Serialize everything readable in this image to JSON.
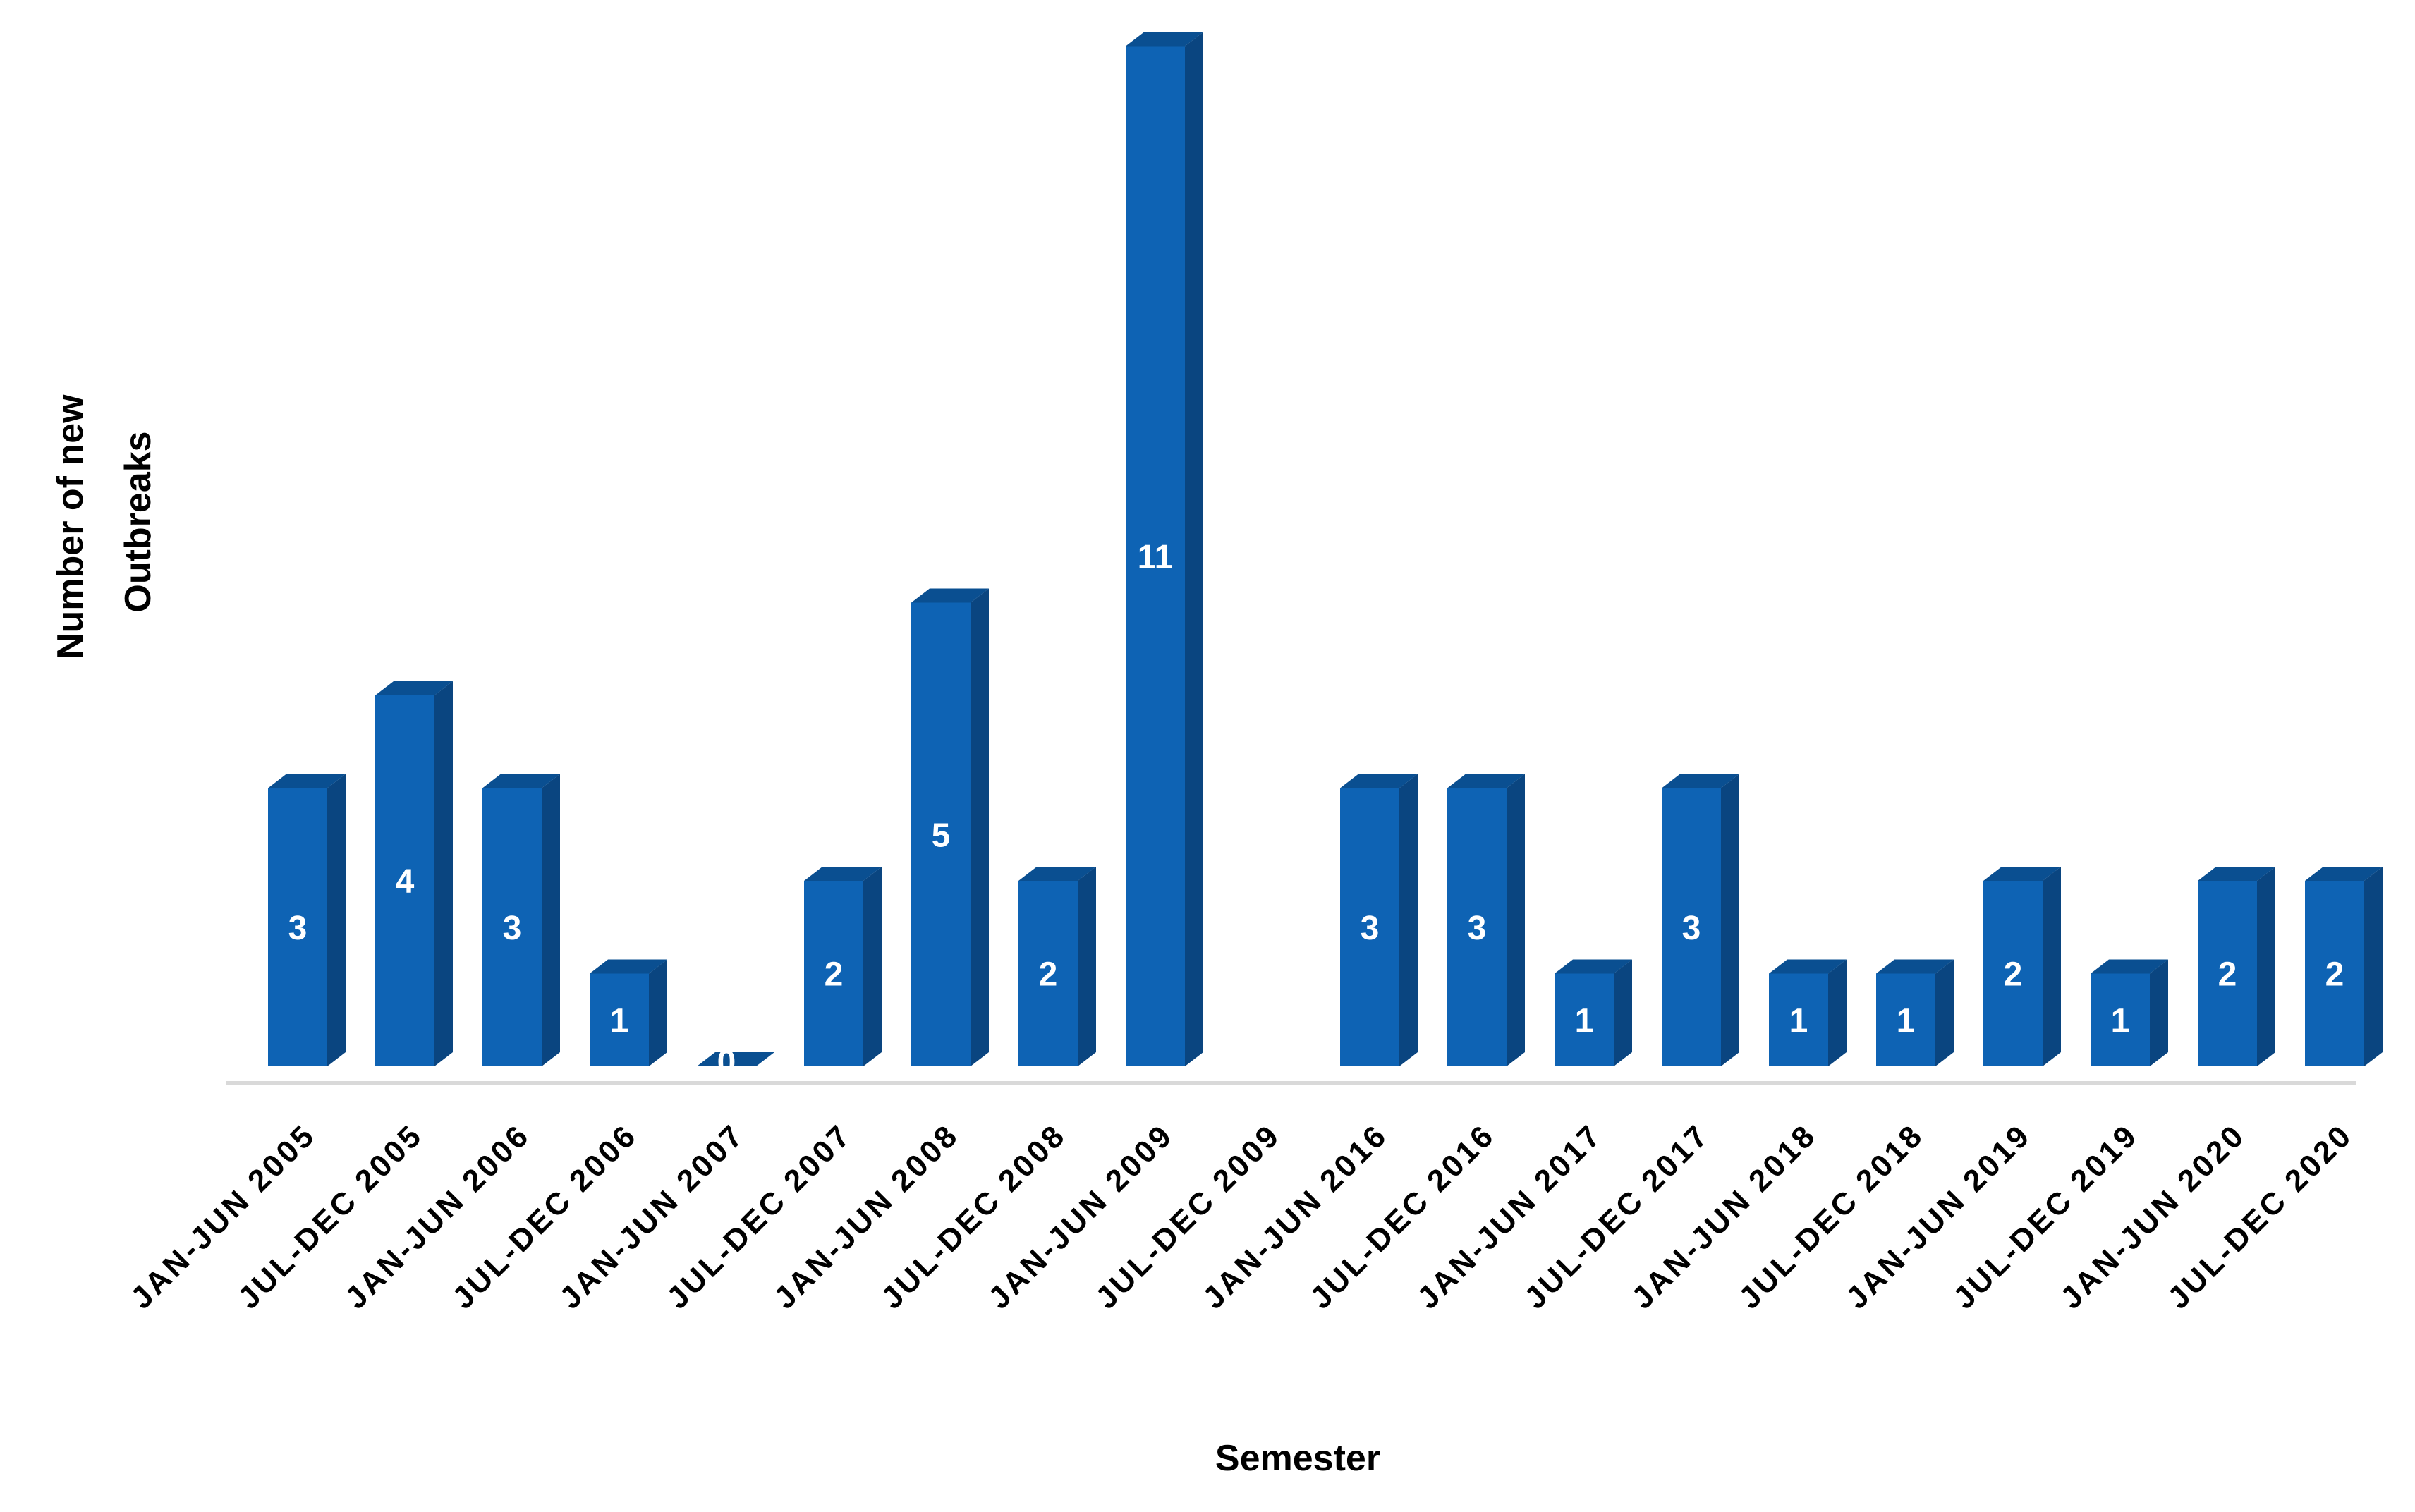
{
  "chart_data": {
    "type": "bar",
    "title": "",
    "xlabel": "Semester",
    "ylabel_lines": [
      "Number of new",
      "Outbreaks"
    ],
    "categories": [
      "JAN-JUN 2005",
      "JUL-DEC 2005",
      "JAN-JUN 2006",
      "JUL-DEC 2006",
      "JAN-JUN 2007",
      "JUL-DEC 2007",
      "JAN-JUN 2008",
      "JUL-DEC 2008",
      "JAN-JUN 2009",
      "JUL-DEC 2009",
      "JAN-JUN 2016",
      "JUL-DEC 2016",
      "JAN-JUN 2017",
      "JUL-DEC 2017",
      "JAN-JUN 2018",
      "JUL-DEC 2018",
      "JAN-JUN 2019",
      "JUL-DEC 2019",
      "JAN-JUN 2020",
      "JUL-DEC 2020"
    ],
    "values": [
      3,
      4,
      3,
      1,
      0,
      2,
      5,
      2,
      11,
      null,
      3,
      3,
      1,
      3,
      1,
      1,
      2,
      1,
      2,
      2
    ],
    "data_labels": [
      "3",
      "4",
      "3",
      "1",
      "0",
      "2",
      "5",
      "2",
      "11",
      "",
      "3",
      "3",
      "1",
      "3",
      "1",
      "1",
      "2",
      "1",
      "2",
      "2"
    ],
    "ylim": [
      0,
      11
    ],
    "grid": false,
    "legend": "none",
    "colors": {
      "bar_front": "#0e63b4",
      "bar_side": "#0a4580",
      "bar_top": "#0a4f91",
      "baseline": "#d9d9d9"
    }
  }
}
